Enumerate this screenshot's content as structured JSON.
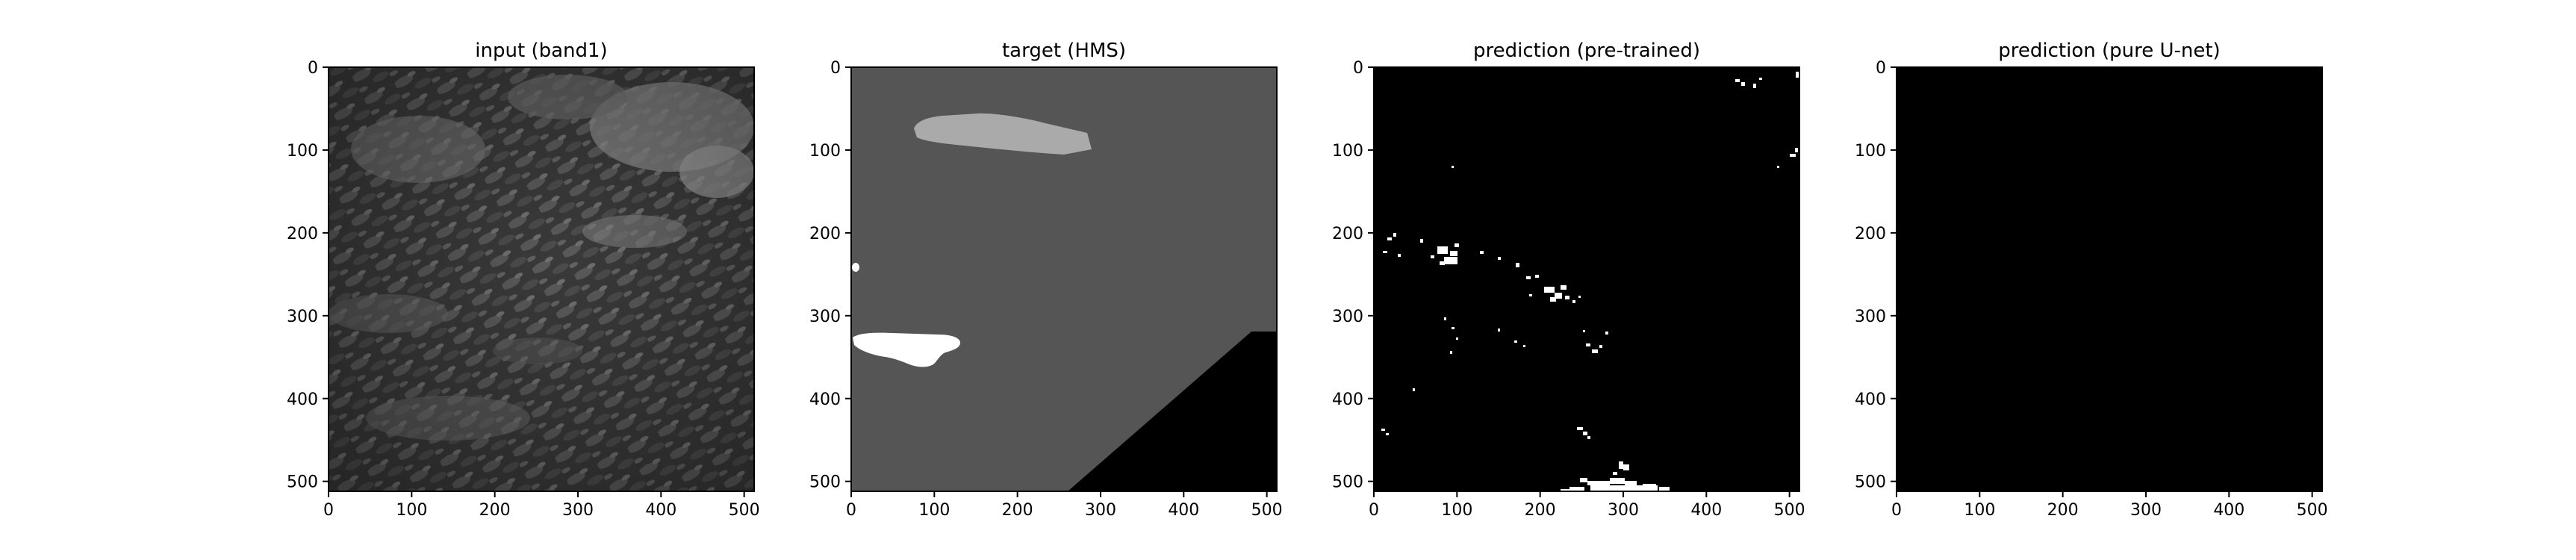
{
  "figure": {
    "panels": [
      {
        "title": "input (band1)",
        "content": "satellite-band1-grayscale",
        "x_ticks": [
          "0",
          "100",
          "200",
          "300",
          "400",
          "500"
        ],
        "y_ticks": [
          "0",
          "100",
          "200",
          "300",
          "400",
          "500"
        ]
      },
      {
        "title": "target (HMS)",
        "content": "hms-smoke-mask",
        "x_ticks": [
          "0",
          "100",
          "200",
          "300",
          "400",
          "500"
        ],
        "y_ticks": [
          "0",
          "100",
          "200",
          "300",
          "400",
          "500"
        ]
      },
      {
        "title": "prediction (pre-trained)",
        "content": "sparse-binary-prediction",
        "x_ticks": [
          "0",
          "100",
          "200",
          "300",
          "400",
          "500"
        ],
        "y_ticks": [
          "0",
          "100",
          "200",
          "300",
          "400",
          "500"
        ]
      },
      {
        "title": "prediction (pure U-net)",
        "content": "empty-black",
        "x_ticks": [
          "0",
          "100",
          "200",
          "300",
          "400",
          "500"
        ],
        "y_ticks": [
          "0",
          "100",
          "200",
          "300",
          "400",
          "500"
        ]
      }
    ],
    "axis_range": [
      0,
      512
    ],
    "tick_values": [
      0,
      100,
      200,
      300,
      400,
      500
    ],
    "colors": {
      "mask_background": "#555555",
      "mask_light_class": "#aaaaaa",
      "mask_white_class": "#ffffff",
      "mask_nodata": "#000000"
    }
  }
}
